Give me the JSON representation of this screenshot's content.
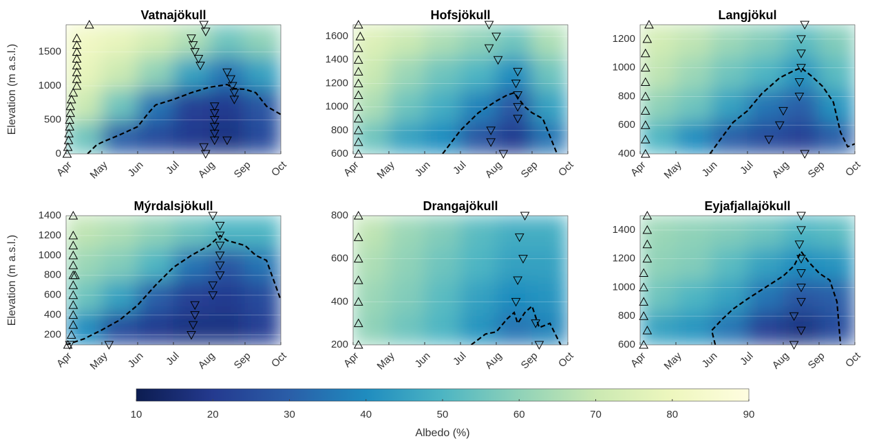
{
  "chart_data": [
    {
      "type": "heatmap",
      "title": "Vatnajökull",
      "ylabel": "Elevation (m a.s.l.)",
      "xlim": [
        0,
        6
      ],
      "xticks": [
        {
          "value": 0,
          "label": "Apr"
        },
        {
          "value": 1,
          "label": "May"
        },
        {
          "value": 2,
          "label": "Jun"
        },
        {
          "value": 3,
          "label": "Jul"
        },
        {
          "value": 4,
          "label": "Aug"
        },
        {
          "value": 5,
          "label": "Sep"
        },
        {
          "value": 6,
          "label": "Oct"
        }
      ],
      "ylim": [
        0,
        1900
      ],
      "yticks": [
        0,
        500,
        1000,
        1500
      ],
      "albedo": [
        [
          55,
          70,
          78,
          82
        ],
        [
          30,
          55,
          70,
          78
        ],
        [
          25,
          35,
          60,
          72
        ],
        [
          20,
          22,
          45,
          65
        ],
        [
          18,
          20,
          35,
          55
        ],
        [
          25,
          28,
          45,
          60
        ]
      ],
      "snowline": {
        "x": [
          0.6,
          0.85,
          1.0,
          1.5,
          2.0,
          2.3,
          2.5,
          3.0,
          3.5,
          4.0,
          4.5,
          4.7,
          5.0,
          5.3,
          5.6,
          6.0
        ],
        "y": [
          0,
          130,
          170,
          280,
          400,
          600,
          720,
          800,
          900,
          980,
          1020,
          960,
          950,
          900,
          700,
          580
        ]
      },
      "up_markers": {
        "x": [
          0.03,
          0.05,
          0.07,
          0.08,
          0.1,
          0.1,
          0.12,
          0.12,
          0.15,
          0.2,
          0.3,
          0.3,
          0.3,
          0.3,
          0.3,
          0.3,
          0.3,
          0.3,
          0.65
        ],
        "y": [
          0,
          100,
          200,
          300,
          400,
          500,
          600,
          700,
          800,
          900,
          1000,
          1100,
          1200,
          1300,
          1400,
          1500,
          1600,
          1700,
          1900
        ]
      },
      "down_markers": {
        "x": [
          3.85,
          3.9,
          4.15,
          4.15,
          4.15,
          4.15,
          4.15,
          4.15,
          4.5,
          4.5,
          4.6,
          4.65,
          4.7,
          4.7,
          3.75,
          3.7,
          3.6,
          3.55,
          3.5,
          3.9,
          3.85
        ],
        "y": [
          100,
          0,
          200,
          300,
          400,
          500,
          600,
          700,
          200,
          1200,
          1100,
          1000,
          900,
          800,
          1300,
          1400,
          1500,
          1600,
          1700,
          1800,
          1900
        ]
      }
    },
    {
      "type": "heatmap",
      "title": "Hofsjökull",
      "xlim": [
        0,
        6
      ],
      "xticks": [
        {
          "value": 0,
          "label": "Apr"
        },
        {
          "value": 1,
          "label": "May"
        },
        {
          "value": 2,
          "label": "Jun"
        },
        {
          "value": 3,
          "label": "Jul"
        },
        {
          "value": 4,
          "label": "Aug"
        },
        {
          "value": 5,
          "label": "Sep"
        },
        {
          "value": 6,
          "label": "Oct"
        }
      ],
      "ylim": [
        600,
        1700
      ],
      "yticks": [
        600,
        800,
        1000,
        1200,
        1400,
        1600
      ],
      "albedo": [
        [
          55,
          65,
          70,
          75
        ],
        [
          45,
          55,
          62,
          70
        ],
        [
          40,
          48,
          55,
          65
        ],
        [
          28,
          38,
          50,
          60
        ],
        [
          20,
          28,
          40,
          55
        ],
        [
          35,
          45,
          55,
          65
        ]
      ],
      "snowline": {
        "x": [
          2.5,
          3.0,
          3.5,
          4.0,
          4.3,
          4.5,
          4.8,
          5.0,
          5.3,
          5.7
        ],
        "y": [
          600,
          800,
          950,
          1050,
          1100,
          1120,
          1000,
          950,
          900,
          600
        ]
      },
      "up_markers": {
        "x": [
          0.15,
          0.15,
          0.15,
          0.15,
          0.15,
          0.15,
          0.15,
          0.15,
          0.15,
          0.15,
          0.2,
          0.15
        ],
        "y": [
          600,
          700,
          800,
          900,
          1000,
          1100,
          1200,
          1300,
          1400,
          1500,
          1600,
          1700
        ]
      },
      "down_markers": {
        "x": [
          3.8,
          4.0,
          3.8,
          4.05,
          4.6,
          4.55,
          4.6,
          4.6,
          4.6,
          3.85,
          3.85,
          4.2
        ],
        "y": [
          1700,
          1600,
          1500,
          1400,
          1300,
          1200,
          1100,
          1000,
          900,
          800,
          700,
          600
        ]
      }
    },
    {
      "type": "heatmap",
      "title": "Langjökul",
      "xlim": [
        0,
        6
      ],
      "xticks": [
        {
          "value": 0,
          "label": "Apr"
        },
        {
          "value": 1,
          "label": "May"
        },
        {
          "value": 2,
          "label": "Jun"
        },
        {
          "value": 3,
          "label": "Jul"
        },
        {
          "value": 4,
          "label": "Aug"
        },
        {
          "value": 5,
          "label": "Sep"
        },
        {
          "value": 6,
          "label": "Oct"
        }
      ],
      "ylim": [
        400,
        1300
      ],
      "yticks": [
        400,
        600,
        800,
        1000,
        1200
      ],
      "albedo": [
        [
          50,
          60,
          68,
          72
        ],
        [
          40,
          55,
          62,
          68
        ],
        [
          30,
          45,
          55,
          62
        ],
        [
          25,
          35,
          50,
          58
        ],
        [
          22,
          30,
          42,
          52
        ],
        [
          30,
          42,
          52,
          58
        ]
      ],
      "snowline": {
        "x": [
          1.95,
          2.3,
          2.6,
          3.0,
          3.4,
          3.9,
          4.3,
          4.5,
          4.8,
          5.1,
          5.4,
          5.6,
          5.8,
          6.0
        ],
        "y": [
          400,
          520,
          620,
          700,
          820,
          930,
          980,
          1000,
          940,
          870,
          760,
          550,
          450,
          470
        ]
      },
      "up_markers": {
        "x": [
          0.15,
          0.15,
          0.15,
          0.15,
          0.15,
          0.15,
          0.15,
          0.15,
          0.2,
          0.25
        ],
        "y": [
          400,
          500,
          600,
          700,
          800,
          900,
          1000,
          1100,
          1200,
          1300
        ]
      },
      "down_markers": {
        "x": [
          4.6,
          4.5,
          4.5,
          4.5,
          4.45,
          4.45,
          4.0,
          3.9,
          3.6,
          4.6
        ],
        "y": [
          1300,
          1200,
          1100,
          1000,
          900,
          800,
          700,
          600,
          500,
          400
        ]
      }
    },
    {
      "type": "heatmap",
      "title": "Mýrdalsjökull",
      "ylabel": "Elevation (m a.s.l.)",
      "xlim": [
        0,
        6
      ],
      "xticks": [
        {
          "value": 0,
          "label": "Apr"
        },
        {
          "value": 1,
          "label": "May"
        },
        {
          "value": 2,
          "label": "Jun"
        },
        {
          "value": 3,
          "label": "Jul"
        },
        {
          "value": 4,
          "label": "Aug"
        },
        {
          "value": 5,
          "label": "Sep"
        },
        {
          "value": 6,
          "label": "Oct"
        }
      ],
      "ylim": [
        100,
        1400
      ],
      "yticks": [
        200,
        400,
        600,
        800,
        1000,
        1200,
        1400
      ],
      "albedo": [
        [
          40,
          55,
          62,
          68
        ],
        [
          25,
          45,
          58,
          65
        ],
        [
          20,
          30,
          50,
          60
        ],
        [
          18,
          22,
          35,
          55
        ],
        [
          18,
          20,
          28,
          50
        ],
        [
          22,
          25,
          35,
          50
        ]
      ],
      "snowline": {
        "x": [
          0.0,
          0.5,
          1.0,
          1.5,
          2.0,
          2.5,
          3.0,
          3.5,
          4.0,
          4.3,
          4.5,
          5.0,
          5.3,
          5.6,
          6.0
        ],
        "y": [
          100,
          160,
          250,
          350,
          500,
          700,
          880,
          1000,
          1100,
          1200,
          1150,
          1100,
          1000,
          950,
          550
        ]
      },
      "up_markers": {
        "x": [
          0.05,
          0.15,
          0.2,
          0.2,
          0.2,
          0.2,
          0.2,
          0.2,
          0.25,
          0.2,
          0.2,
          0.2,
          0.2,
          0.2
        ],
        "y": [
          100,
          200,
          300,
          400,
          500,
          600,
          700,
          800,
          800,
          900,
          1000,
          1100,
          1200,
          1400
        ]
      },
      "down_markers": {
        "x": [
          4.1,
          4.3,
          4.3,
          4.3,
          4.3,
          4.3,
          4.3,
          4.1,
          4.1,
          3.6,
          3.6,
          3.55,
          3.5,
          1.2,
          0.1
        ],
        "y": [
          1400,
          1300,
          1200,
          1100,
          1000,
          900,
          800,
          700,
          600,
          500,
          400,
          300,
          200,
          100,
          100
        ]
      }
    },
    {
      "type": "heatmap",
      "title": "Drangajökull",
      "xlim": [
        0,
        6
      ],
      "xticks": [
        {
          "value": 0,
          "label": "Apr"
        },
        {
          "value": 1,
          "label": "May"
        },
        {
          "value": 2,
          "label": "Jun"
        },
        {
          "value": 3,
          "label": "Jul"
        },
        {
          "value": 4,
          "label": "Aug"
        },
        {
          "value": 5,
          "label": "Sep"
        },
        {
          "value": 6,
          "label": "Oct"
        }
      ],
      "ylim": [
        200,
        800
      ],
      "yticks": [
        200,
        400,
        600,
        800
      ],
      "albedo": [
        [
          60,
          62,
          65,
          68
        ],
        [
          55,
          58,
          60,
          62
        ],
        [
          50,
          52,
          55,
          58
        ],
        [
          42,
          45,
          50,
          52
        ],
        [
          35,
          40,
          45,
          48
        ],
        [
          38,
          42,
          45,
          48
        ]
      ],
      "snowline": {
        "x": [
          3.3,
          3.7,
          4.0,
          4.3,
          4.5,
          4.6,
          4.8,
          5.0,
          5.2,
          5.5,
          5.8
        ],
        "y": [
          200,
          250,
          260,
          320,
          350,
          300,
          350,
          380,
          280,
          300,
          200
        ]
      },
      "up_markers": {
        "x": [
          0.15,
          0.15,
          0.15,
          0.15,
          0.15,
          0.15,
          0.15
        ],
        "y": [
          200,
          300,
          400,
          500,
          600,
          700,
          800
        ]
      },
      "down_markers": {
        "x": [
          4.8,
          4.65,
          4.75,
          4.6,
          4.55,
          5.1,
          5.2
        ],
        "y": [
          800,
          700,
          600,
          500,
          400,
          300,
          200
        ]
      }
    },
    {
      "type": "heatmap",
      "title": "Eyjafjallajökull",
      "xlim": [
        0,
        6
      ],
      "xticks": [
        {
          "value": 0,
          "label": "Apr"
        },
        {
          "value": 1,
          "label": "May"
        },
        {
          "value": 2,
          "label": "Jun"
        },
        {
          "value": 3,
          "label": "Jul"
        },
        {
          "value": 4,
          "label": "Aug"
        },
        {
          "value": 5,
          "label": "Sep"
        },
        {
          "value": 6,
          "label": "Oct"
        }
      ],
      "ylim": [
        600,
        1500
      ],
      "yticks": [
        600,
        800,
        1000,
        1200,
        1400
      ],
      "albedo": [
        [
          45,
          55,
          60,
          62
        ],
        [
          42,
          50,
          58,
          60
        ],
        [
          35,
          45,
          52,
          58
        ],
        [
          22,
          35,
          45,
          55
        ],
        [
          18,
          28,
          40,
          50
        ],
        [
          25,
          30,
          42,
          52
        ]
      ],
      "snowline": {
        "x": [
          2.1,
          2.0,
          2.3,
          2.6,
          3.0,
          3.5,
          4.0,
          4.3,
          4.5,
          4.7,
          5.0,
          5.3,
          5.5,
          5.6
        ],
        "y": [
          600,
          700,
          780,
          850,
          920,
          1000,
          1080,
          1150,
          1250,
          1180,
          1100,
          1050,
          900,
          600
        ]
      },
      "up_markers": {
        "x": [
          0.1,
          0.2,
          0.1,
          0.1,
          0.1,
          0.1,
          0.2,
          0.2,
          0.2,
          0.2
        ],
        "y": [
          600,
          700,
          800,
          900,
          1000,
          1100,
          1200,
          1300,
          1400,
          1500
        ]
      },
      "down_markers": {
        "x": [
          4.5,
          4.5,
          4.45,
          4.5,
          4.5,
          4.5,
          4.5,
          4.3,
          4.5,
          4.3
        ],
        "y": [
          1500,
          1400,
          1300,
          1200,
          1100,
          1000,
          900,
          800,
          700,
          600
        ]
      }
    }
  ],
  "colorbar": {
    "label": "Albedo (%)",
    "range": [
      10,
      90
    ],
    "ticks": [
      10,
      20,
      30,
      40,
      50,
      60,
      70,
      80,
      90
    ],
    "colors": [
      "#0c1c50",
      "#243a8f",
      "#2a5ea8",
      "#1f8cbf",
      "#4db5c3",
      "#8fd2b8",
      "#cbe9b2",
      "#eef7be",
      "#fffde0"
    ]
  }
}
